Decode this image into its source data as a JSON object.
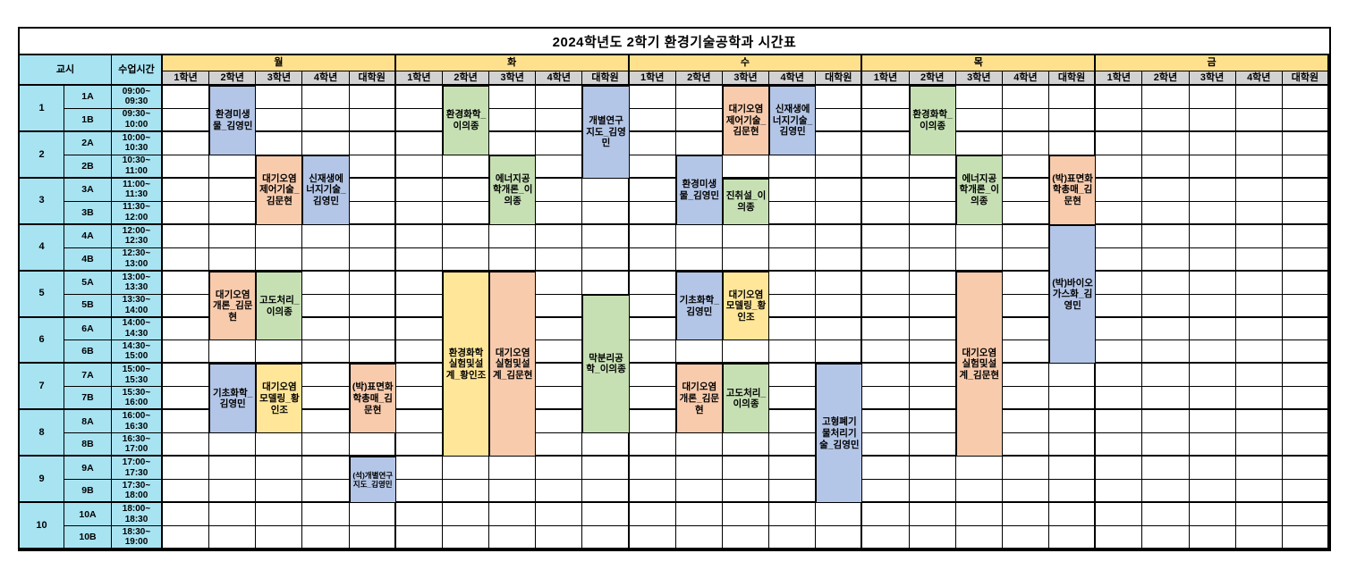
{
  "title": "2024학년도 2학기 환경기술공학과 시간표",
  "headers": {
    "period": "교시",
    "class_time": "수업시간",
    "days": [
      "월",
      "화",
      "수",
      "목",
      "금"
    ],
    "grades": [
      "1학년",
      "2학년",
      "3학년",
      "4학년",
      "대학원"
    ]
  },
  "periods": [
    {
      "no": "1",
      "subs": [
        {
          "label": "1A",
          "time": "09:00~\n09:30"
        },
        {
          "label": "1B",
          "time": "09:30~\n10:00"
        }
      ]
    },
    {
      "no": "2",
      "subs": [
        {
          "label": "2A",
          "time": "10:00~\n10:30"
        },
        {
          "label": "2B",
          "time": "10:30~\n11:00"
        }
      ]
    },
    {
      "no": "3",
      "subs": [
        {
          "label": "3A",
          "time": "11:00~\n11:30"
        },
        {
          "label": "3B",
          "time": "11:30~\n12:00"
        }
      ]
    },
    {
      "no": "4",
      "subs": [
        {
          "label": "4A",
          "time": "12:00~\n12:30"
        },
        {
          "label": "4B",
          "time": "12:30~\n13:00"
        }
      ]
    },
    {
      "no": "5",
      "subs": [
        {
          "label": "5A",
          "time": "13:00~\n13:30"
        },
        {
          "label": "5B",
          "time": "13:30~\n14:00"
        }
      ]
    },
    {
      "no": "6",
      "subs": [
        {
          "label": "6A",
          "time": "14:00~\n14:30"
        },
        {
          "label": "6B",
          "time": "14:30~\n15:00"
        }
      ]
    },
    {
      "no": "7",
      "subs": [
        {
          "label": "7A",
          "time": "15:00~\n15:30"
        },
        {
          "label": "7B",
          "time": "15:30~\n16:00"
        }
      ]
    },
    {
      "no": "8",
      "subs": [
        {
          "label": "8A",
          "time": "16:00~\n16:30"
        },
        {
          "label": "8B",
          "time": "16:30~\n17:00"
        }
      ]
    },
    {
      "no": "9",
      "subs": [
        {
          "label": "9A",
          "time": "17:00~\n17:30"
        },
        {
          "label": "9B",
          "time": "17:30~\n18:00"
        }
      ]
    },
    {
      "no": "10",
      "subs": [
        {
          "label": "10A",
          "time": "18:00~\n18:30"
        },
        {
          "label": "10B",
          "time": "18:30~\n19:00"
        }
      ]
    }
  ],
  "colors": {
    "blue": "#B4C6E7",
    "orange": "#F8CBAD",
    "green": "#C6E0B4",
    "yellow": "#FFE699",
    "left_panel": "#A8E3F2",
    "day_header": "#FFE08C",
    "grade_header": "#D2D2D2"
  },
  "courses": [
    {
      "day": 0,
      "grade": 1,
      "row": 0,
      "span": 3,
      "color": "blue",
      "label": "환경미생물_김영민"
    },
    {
      "day": 0,
      "grade": 2,
      "row": 3,
      "span": 3,
      "color": "orange",
      "label": "대기오염제어기술_김문현"
    },
    {
      "day": 0,
      "grade": 3,
      "row": 3,
      "span": 3,
      "color": "blue",
      "label": "신재생에너지기술_김영민"
    },
    {
      "day": 0,
      "grade": 1,
      "row": 8,
      "span": 3,
      "color": "orange",
      "label": "대기오염개론_김문현"
    },
    {
      "day": 0,
      "grade": 2,
      "row": 8,
      "span": 3,
      "color": "green",
      "label": "고도처리_이의종"
    },
    {
      "day": 0,
      "grade": 1,
      "row": 12,
      "span": 3,
      "color": "blue",
      "label": "기초화학_김영민"
    },
    {
      "day": 0,
      "grade": 2,
      "row": 12,
      "span": 3,
      "color": "yellow",
      "label": "대기오염모델링_황인조"
    },
    {
      "day": 0,
      "grade": 4,
      "row": 12,
      "span": 3,
      "color": "orange",
      "label": "(박)표면화학총매_김문현"
    },
    {
      "day": 0,
      "grade": 4,
      "row": 16,
      "span": 2,
      "color": "blue",
      "label": "(석)개별연구지도_김영민",
      "small": true
    },
    {
      "day": 1,
      "grade": 1,
      "row": 0,
      "span": 3,
      "color": "green",
      "label": "환경화학_이의종"
    },
    {
      "day": 1,
      "grade": 4,
      "row": 0,
      "span": 4,
      "color": "blue",
      "label": "개별연구지도_김영민"
    },
    {
      "day": 1,
      "grade": 2,
      "row": 3,
      "span": 3,
      "color": "green",
      "label": "에너지공학개론_이의종"
    },
    {
      "day": 1,
      "grade": 1,
      "row": 8,
      "span": 8,
      "color": "yellow",
      "label": "환경화학실험및설계_황인조"
    },
    {
      "day": 1,
      "grade": 2,
      "row": 8,
      "span": 8,
      "color": "orange",
      "label": "대기오염실험및설계_김문현"
    },
    {
      "day": 1,
      "grade": 4,
      "row": 9,
      "span": 6,
      "color": "green",
      "label": "막분리공학_이의종"
    },
    {
      "day": 2,
      "grade": 2,
      "row": 0,
      "span": 3,
      "color": "orange",
      "label": "대기오염제어기술_김문현"
    },
    {
      "day": 2,
      "grade": 3,
      "row": 0,
      "span": 3,
      "color": "blue",
      "label": "신재생에너지기술_김영민"
    },
    {
      "day": 2,
      "grade": 1,
      "row": 3,
      "span": 3,
      "color": "blue",
      "label": "환경미생물_김영민"
    },
    {
      "day": 2,
      "grade": 2,
      "row": 4,
      "span": 2,
      "color": "green",
      "label": "진취설_이의종"
    },
    {
      "day": 2,
      "grade": 1,
      "row": 8,
      "span": 3,
      "color": "blue",
      "label": "기초화학_김영민"
    },
    {
      "day": 2,
      "grade": 2,
      "row": 8,
      "span": 3,
      "color": "yellow",
      "label": "대기오염모델링_황인조"
    },
    {
      "day": 2,
      "grade": 1,
      "row": 12,
      "span": 3,
      "color": "orange",
      "label": "대기오염개론_김문현"
    },
    {
      "day": 2,
      "grade": 2,
      "row": 12,
      "span": 3,
      "color": "green",
      "label": "고도처리_이의종"
    },
    {
      "day": 2,
      "grade": 4,
      "row": 12,
      "span": 6,
      "color": "blue",
      "label": "고형폐기물처리기술_김영민"
    },
    {
      "day": 3,
      "grade": 1,
      "row": 0,
      "span": 3,
      "color": "green",
      "label": "환경화학_이의종"
    },
    {
      "day": 3,
      "grade": 2,
      "row": 3,
      "span": 3,
      "color": "green",
      "label": "에너지공학개론_이의종"
    },
    {
      "day": 3,
      "grade": 4,
      "row": 3,
      "span": 3,
      "color": "orange",
      "label": "(박)표면화학총매_김문현"
    },
    {
      "day": 3,
      "grade": 4,
      "row": 6,
      "span": 6,
      "color": "blue",
      "label": "(박)바이오가스화_김영민"
    },
    {
      "day": 3,
      "grade": 2,
      "row": 8,
      "span": 8,
      "color": "orange",
      "label": "대기오염실험및설계_김문현"
    }
  ]
}
